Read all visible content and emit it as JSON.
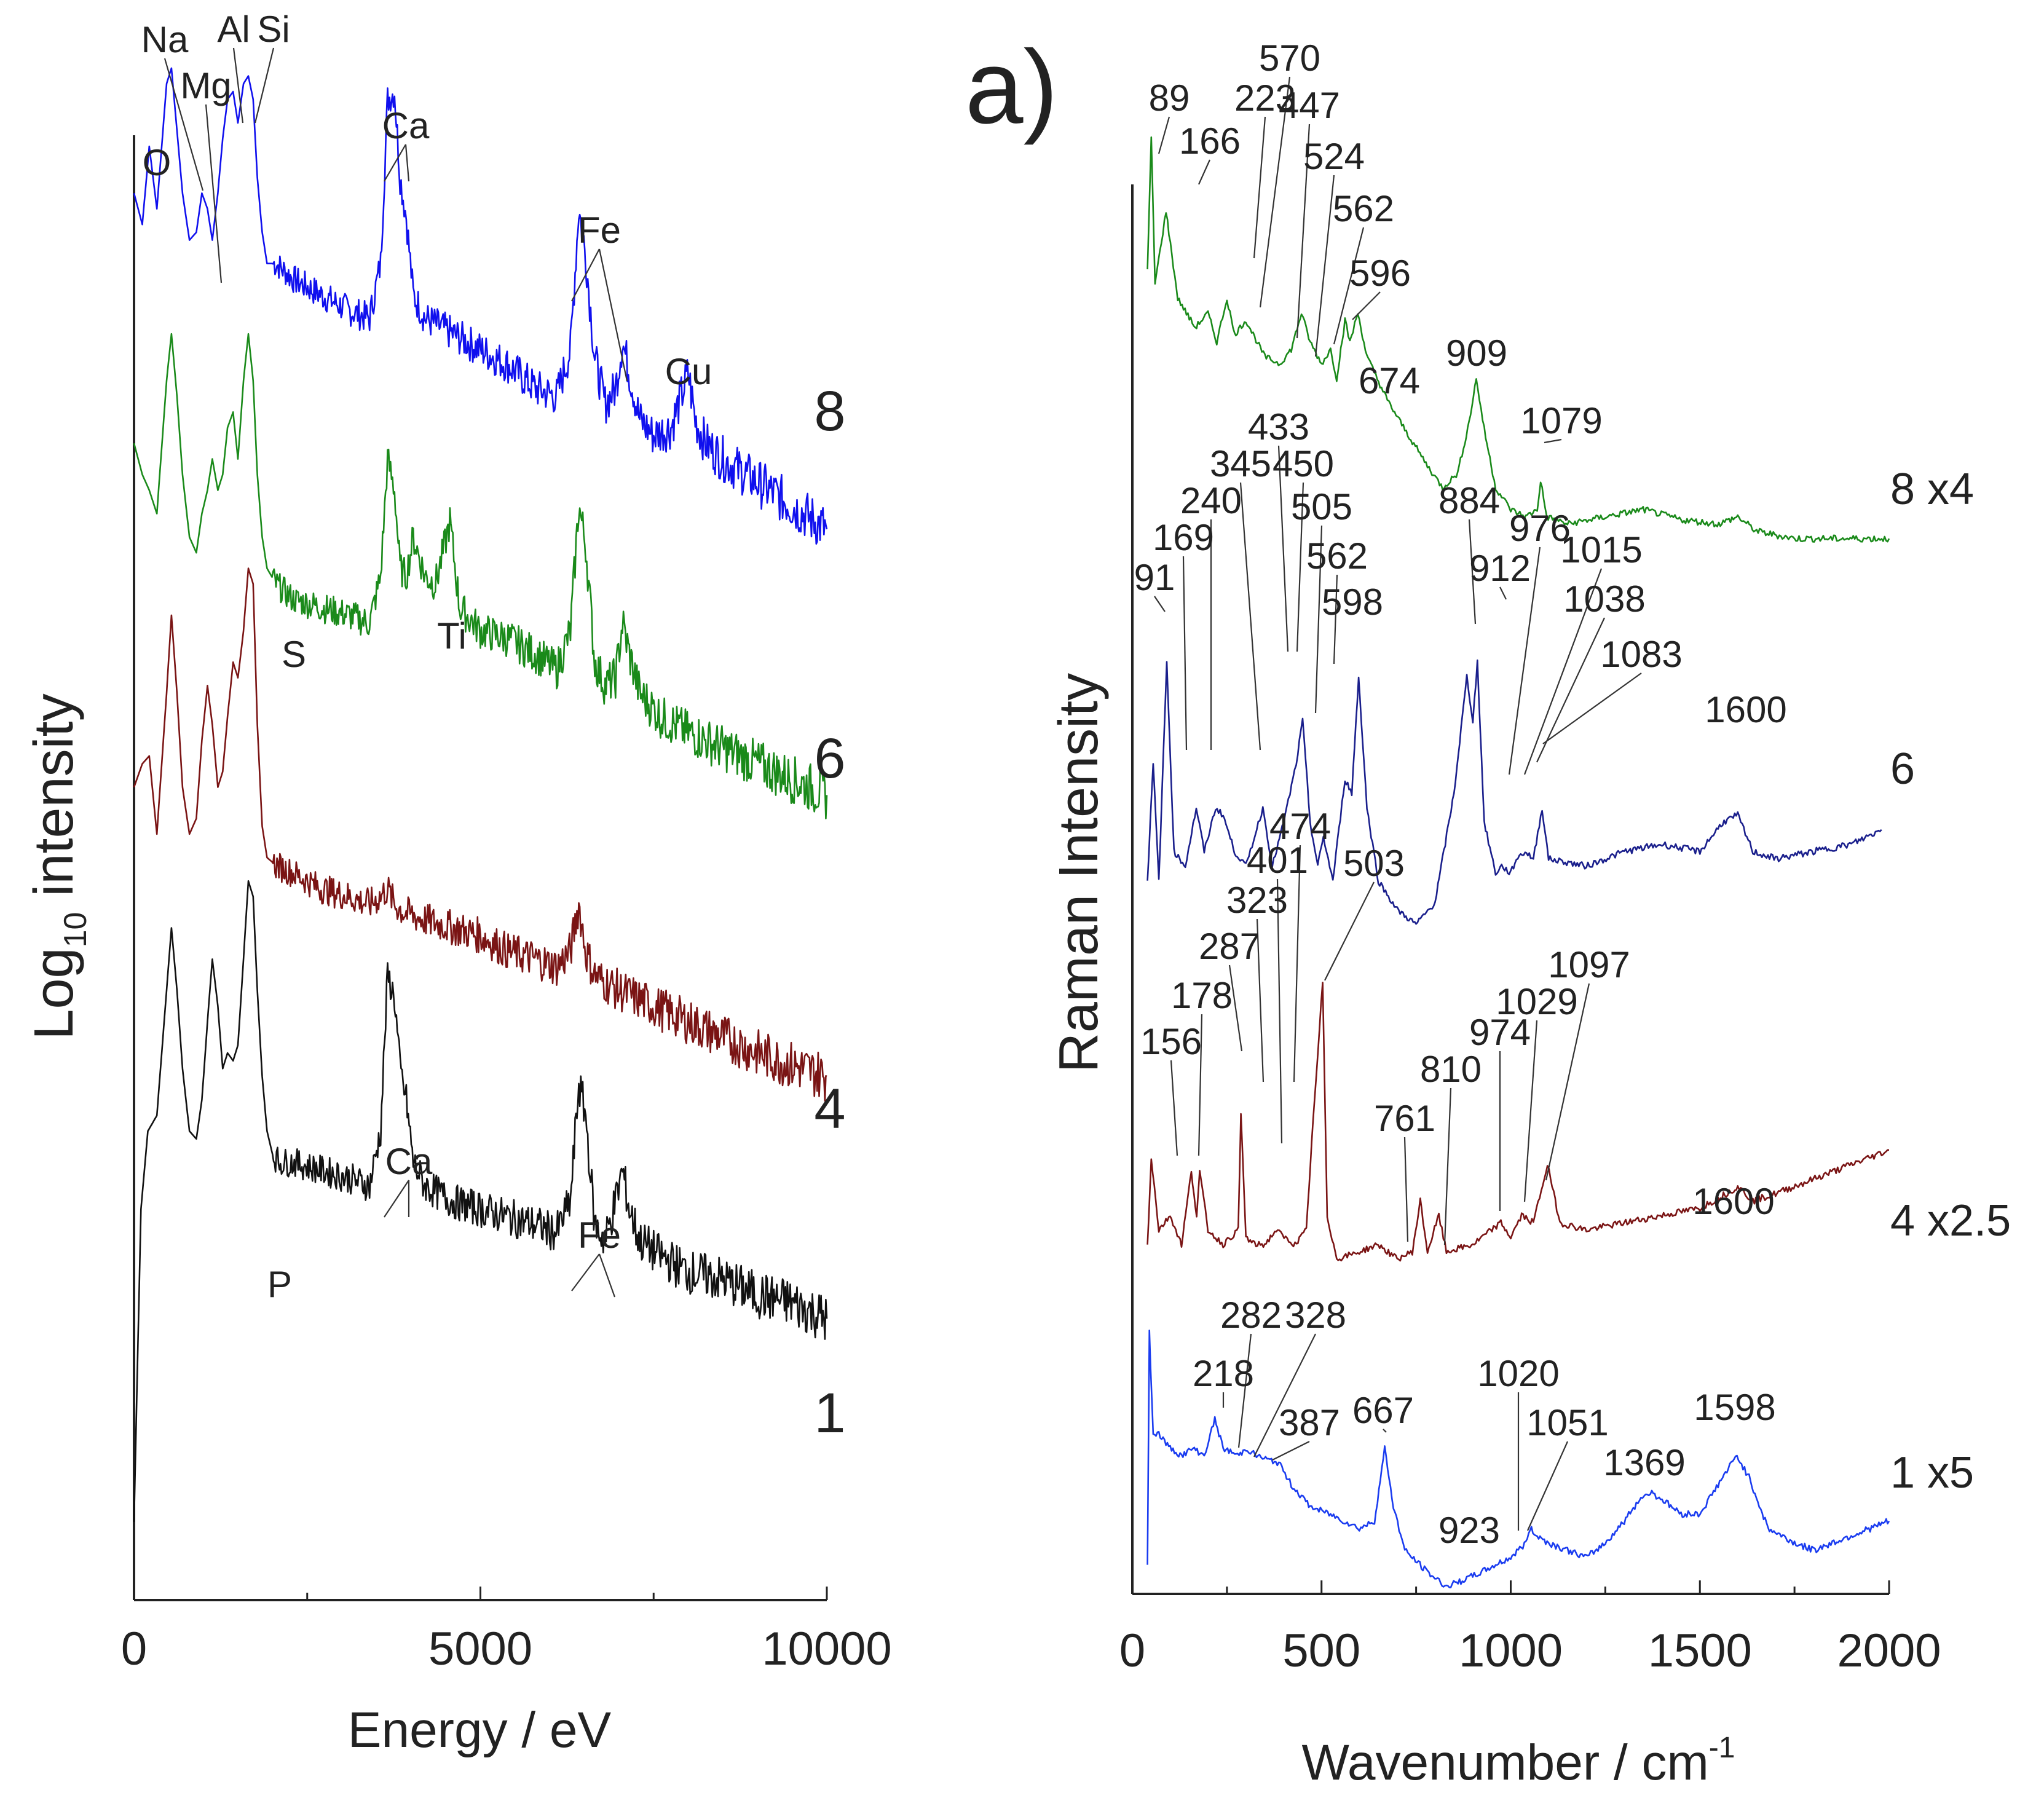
{
  "colors": {
    "blue": "#1010ee",
    "green": "#1a8a1a",
    "darkred": "#7a1414",
    "black": "#111111",
    "navy": "#1a1f8c",
    "raman_blue": "#1a3cf0"
  },
  "chart_data": [
    {
      "type": "line",
      "panel": "left",
      "title": "",
      "xlabel": "Energy  /  eV",
      "ylabel_main": "Log",
      "ylabel_sub": "10",
      "ylabel_rest": " intensity",
      "xlim": [
        0,
        10000
      ],
      "ylim": [
        0,
        10
      ],
      "xticks": [
        0,
        5000,
        10000
      ],
      "xtick_labels": [
        "0",
        "5000",
        "10000"
      ],
      "series": [
        {
          "name": "8",
          "color": "blue",
          "label": "8",
          "x": [
            0,
            120,
            220,
            330,
            470,
            540,
            620,
            700,
            800,
            900,
            980,
            1060,
            1130,
            1210,
            1280,
            1350,
            1430,
            1500,
            1580,
            1650,
            1720,
            1780,
            1850,
            1920,
            2050,
            2300,
            2700,
            3100,
            3400,
            3560,
            3660,
            3760,
            3840,
            3930,
            4030,
            4200,
            4600,
            5000,
            5400,
            5800,
            6100,
            6300,
            6420,
            6520,
            6650,
            6800,
            6950,
            7050,
            7150,
            7300,
            7500,
            7750,
            7900,
            8000,
            8100,
            8250,
            8500,
            9000,
            9500,
            10000
          ],
          "y": [
            9.0,
            8.8,
            9.3,
            8.9,
            9.7,
            9.8,
            9.4,
            9.0,
            8.7,
            8.75,
            9.0,
            8.9,
            8.7,
            9.0,
            9.35,
            9.6,
            9.65,
            9.45,
            9.7,
            9.75,
            9.6,
            9.1,
            8.75,
            8.55,
            8.55,
            8.45,
            8.35,
            8.25,
            8.2,
            8.55,
            9.6,
            9.65,
            9.1,
            8.85,
            8.35,
            8.2,
            8.1,
            8.0,
            7.9,
            7.75,
            7.7,
            8.0,
            8.9,
            8.6,
            7.95,
            7.65,
            7.75,
            8.05,
            7.85,
            7.55,
            7.45,
            7.5,
            7.7,
            7.85,
            7.55,
            7.4,
            7.3,
            7.15,
            7.0,
            6.85
          ]
        },
        {
          "name": "6",
          "color": "green",
          "label": "6",
          "x": [
            0,
            120,
            220,
            330,
            470,
            540,
            620,
            700,
            800,
            900,
            980,
            1060,
            1130,
            1210,
            1280,
            1350,
            1430,
            1500,
            1580,
            1650,
            1720,
            1780,
            1850,
            1920,
            2050,
            2300,
            2700,
            3100,
            3400,
            3560,
            3660,
            3760,
            3840,
            3930,
            4030,
            4200,
            4350,
            4460,
            4560,
            4700,
            5000,
            5400,
            5800,
            6100,
            6300,
            6420,
            6520,
            6650,
            6800,
            6950,
            7050,
            7150,
            7300,
            7600,
            8000,
            8500,
            9000,
            9500,
            10000
          ],
          "y": [
            7.4,
            7.2,
            7.1,
            6.95,
            7.8,
            8.1,
            7.7,
            7.2,
            6.8,
            6.7,
            6.95,
            7.1,
            7.3,
            7.1,
            7.2,
            7.5,
            7.6,
            7.3,
            7.8,
            8.1,
            7.8,
            7.2,
            6.8,
            6.6,
            6.5,
            6.4,
            6.35,
            6.3,
            6.25,
            6.55,
            7.3,
            7.1,
            6.6,
            6.55,
            6.8,
            6.55,
            6.5,
            6.7,
            6.9,
            6.35,
            6.2,
            6.15,
            6.05,
            5.95,
            6.2,
            7.0,
            6.75,
            6.0,
            5.85,
            5.9,
            6.25,
            6.05,
            5.8,
            5.65,
            5.55,
            5.45,
            5.35,
            5.25,
            5.15
          ]
        },
        {
          "name": "4",
          "color": "darkred",
          "label": "4",
          "x": [
            0,
            120,
            220,
            330,
            470,
            540,
            620,
            700,
            800,
            900,
            980,
            1060,
            1130,
            1210,
            1280,
            1350,
            1430,
            1500,
            1580,
            1650,
            1720,
            1780,
            1850,
            1920,
            2050,
            2300,
            2700,
            3100,
            3400,
            3560,
            3660,
            3760,
            3900,
            4200,
            4600,
            5000,
            5400,
            5800,
            6100,
            6300,
            6420,
            6520,
            6650,
            6800,
            7000,
            7500,
            8000,
            8500,
            9000,
            9500,
            10000
          ],
          "y": [
            5.2,
            5.35,
            5.4,
            4.9,
            5.8,
            6.3,
            5.8,
            5.2,
            4.9,
            5.0,
            5.5,
            5.85,
            5.6,
            5.2,
            5.3,
            5.65,
            6.0,
            5.9,
            6.2,
            6.6,
            6.5,
            5.6,
            4.95,
            4.75,
            4.7,
            4.65,
            4.55,
            4.5,
            4.45,
            4.5,
            4.55,
            4.45,
            4.4,
            4.35,
            4.3,
            4.25,
            4.15,
            4.1,
            4.05,
            4.15,
            4.45,
            4.15,
            4.0,
            3.95,
            3.9,
            3.8,
            3.7,
            3.6,
            3.5,
            3.42,
            3.35
          ]
        },
        {
          "name": "1",
          "color": "black",
          "label": "1",
          "x": [
            0,
            100,
            200,
            330,
            470,
            540,
            620,
            700,
            800,
            900,
            980,
            1060,
            1130,
            1210,
            1280,
            1350,
            1430,
            1500,
            1580,
            1650,
            1720,
            1780,
            1850,
            1920,
            2000,
            2100,
            2300,
            2700,
            3100,
            3400,
            3560,
            3660,
            3760,
            3840,
            3930,
            4030,
            4200,
            4600,
            5000,
            5400,
            5800,
            6100,
            6300,
            6420,
            6520,
            6650,
            6800,
            6950,
            7050,
            7150,
            7300,
            7600,
            8000,
            8500,
            9000,
            9500,
            10000
          ],
          "y": [
            0.5,
            2.5,
            3.0,
            3.1,
            3.9,
            4.3,
            3.9,
            3.4,
            3.0,
            2.95,
            3.2,
            3.7,
            4.1,
            3.8,
            3.4,
            3.5,
            3.45,
            3.55,
            4.1,
            4.6,
            4.5,
            3.9,
            3.35,
            3.0,
            2.85,
            2.8,
            2.8,
            2.75,
            2.7,
            2.65,
            3.0,
            4.0,
            3.85,
            3.4,
            3.2,
            2.8,
            2.65,
            2.55,
            2.5,
            2.45,
            2.4,
            2.35,
            2.55,
            3.3,
            3.1,
            2.4,
            2.3,
            2.55,
            2.75,
            2.5,
            2.3,
            2.2,
            2.1,
            2.05,
            1.95,
            1.9,
            1.8
          ]
        }
      ],
      "annotations": [
        {
          "text": "Na",
          "series": "8"
        },
        {
          "text": "Mg",
          "series": "8"
        },
        {
          "text": "Al",
          "series": "8"
        },
        {
          "text": "Si",
          "series": "8"
        },
        {
          "text": "O",
          "series": "8"
        },
        {
          "text": "Ca",
          "series": "8"
        },
        {
          "text": "Fe",
          "series": "8"
        },
        {
          "text": "Cu",
          "series": "8"
        },
        {
          "text": "S",
          "series": "6"
        },
        {
          "text": "Ti",
          "series": "6"
        },
        {
          "text": "Ca",
          "series": "1"
        },
        {
          "text": "P",
          "series": "1"
        },
        {
          "text": "Fe",
          "series": "1"
        }
      ]
    },
    {
      "type": "line",
      "panel": "right",
      "panel_label": "a)",
      "xlabel": "Wavenumber / cm",
      "xlabel_sup": "-1",
      "ylabel": "Raman  Intensity",
      "xlim": [
        0,
        2000
      ],
      "ylim": [
        0,
        10
      ],
      "xticks": [
        0,
        500,
        1000,
        1500,
        2000
      ],
      "xtick_labels": [
        "0",
        "500",
        "1000",
        "1500",
        "2000"
      ],
      "series": [
        {
          "name": "8 x4",
          "color": "green",
          "label": "8 x4",
          "x": [
            40,
            50,
            60,
            89,
            120,
            166,
            200,
            223,
            250,
            270,
            300,
            350,
            390,
            420,
            447,
            470,
            500,
            524,
            540,
            562,
            575,
            596,
            620,
            674,
            720,
            780,
            820,
            860,
            890,
            909,
            930,
            960,
            1000,
            1040,
            1070,
            1079,
            1095,
            1150,
            1250,
            1350,
            1450,
            1550,
            1600,
            1650,
            1750,
            1850,
            2000
          ],
          "y": [
            9.1,
            10.0,
            9.0,
            9.5,
            8.9,
            8.7,
            8.8,
            8.6,
            8.9,
            8.65,
            8.75,
            8.5,
            8.45,
            8.55,
            8.8,
            8.6,
            8.45,
            8.55,
            8.35,
            8.75,
            8.6,
            8.8,
            8.5,
            8.2,
            8.0,
            7.75,
            7.6,
            7.7,
            8.05,
            8.35,
            8.0,
            7.6,
            7.45,
            7.4,
            7.45,
            7.65,
            7.4,
            7.35,
            7.4,
            7.45,
            7.38,
            7.35,
            7.4,
            7.3,
            7.25,
            7.25,
            7.25
          ]
        },
        {
          "name": "6",
          "color": "navy",
          "label": "6",
          "x": [
            40,
            55,
            70,
            91,
            110,
            140,
            169,
            190,
            220,
            240,
            270,
            300,
            345,
            370,
            400,
            433,
            450,
            470,
            490,
            505,
            530,
            562,
            580,
            598,
            620,
            650,
            700,
            750,
            800,
            850,
            884,
            900,
            912,
            930,
            960,
            976,
            1000,
            1015,
            1038,
            1060,
            1083,
            1100,
            1200,
            1300,
            1400,
            1500,
            1560,
            1600,
            1640,
            1700,
            1800,
            1900,
            1980
          ],
          "y": [
            4.9,
            5.7,
            4.9,
            6.4,
            5.1,
            5.0,
            5.4,
            5.1,
            5.4,
            5.35,
            5.1,
            5.0,
            5.4,
            5.0,
            5.3,
            5.7,
            6.0,
            5.3,
            5.0,
            5.2,
            4.9,
            5.6,
            5.5,
            6.3,
            5.4,
            4.9,
            4.7,
            4.6,
            4.75,
            5.5,
            6.3,
            6.0,
            6.4,
            5.3,
            4.95,
            5.0,
            4.95,
            5.05,
            5.1,
            5.05,
            5.4,
            5.05,
            5.0,
            5.1,
            5.15,
            5.1,
            5.3,
            5.35,
            5.1,
            5.05,
            5.1,
            5.15,
            5.25
          ]
        },
        {
          "name": "4 x2.5",
          "color": "darkred",
          "label": "4 x2.5",
          "x": [
            40,
            50,
            70,
            100,
            130,
            156,
            170,
            178,
            200,
            240,
            280,
            287,
            300,
            323,
            350,
            380,
            401,
            430,
            460,
            474,
            490,
            503,
            515,
            540,
            600,
            650,
            700,
            740,
            761,
            780,
            810,
            830,
            900,
            974,
            1000,
            1029,
            1060,
            1097,
            1130,
            1200,
            1300,
            1400,
            1500,
            1570,
            1600,
            1640,
            1700,
            1800,
            1900,
            2000
          ],
          "y": [
            2.4,
            3.0,
            2.5,
            2.6,
            2.4,
            2.9,
            2.6,
            2.9,
            2.5,
            2.4,
            2.5,
            3.3,
            2.45,
            2.4,
            2.4,
            2.5,
            2.45,
            2.4,
            2.5,
            3.1,
            3.7,
            4.2,
            2.6,
            2.3,
            2.35,
            2.4,
            2.3,
            2.35,
            2.7,
            2.35,
            2.6,
            2.35,
            2.4,
            2.55,
            2.45,
            2.6,
            2.55,
            2.95,
            2.55,
            2.5,
            2.55,
            2.6,
            2.65,
            2.75,
            2.8,
            2.7,
            2.75,
            2.85,
            2.95,
            3.05
          ]
        },
        {
          "name": "1 x5",
          "color": "raman_blue",
          "label": "1 x5",
          "x": [
            40,
            45,
            55,
            70,
            100,
            130,
            160,
            190,
            218,
            240,
            282,
            300,
            328,
            360,
            387,
            420,
            470,
            520,
            560,
            600,
            640,
            667,
            690,
            720,
            780,
            830,
            880,
            923,
            960,
            1000,
            1020,
            1040,
            1051,
            1070,
            1100,
            1150,
            1200,
            1250,
            1300,
            1340,
            1369,
            1400,
            1450,
            1500,
            1560,
            1598,
            1630,
            1680,
            1750,
            1800,
            1850,
            1900,
            1950,
            2000
          ],
          "y": [
            0.2,
            1.8,
            1.1,
            1.1,
            1.0,
            0.95,
            1.0,
            0.95,
            1.2,
            1.0,
            0.95,
            1.0,
            0.95,
            0.92,
            0.9,
            0.75,
            0.6,
            0.55,
            0.5,
            0.45,
            0.5,
            1.0,
            0.6,
            0.3,
            0.15,
            0.05,
            0.1,
            0.15,
            0.2,
            0.25,
            0.3,
            0.35,
            0.45,
            0.4,
            0.35,
            0.3,
            0.25,
            0.35,
            0.5,
            0.65,
            0.7,
            0.65,
            0.55,
            0.55,
            0.8,
            0.95,
            0.8,
            0.45,
            0.35,
            0.3,
            0.35,
            0.4,
            0.45,
            0.5
          ]
        }
      ],
      "peak_labels": [
        {
          "series": "8 x4",
          "labels": [
            "89",
            "166",
            "223",
            "570",
            "447",
            "524",
            "562",
            "596",
            "674",
            "909",
            "1079"
          ]
        },
        {
          "series": "6",
          "labels": [
            "91",
            "169",
            "240",
            "345",
            "433",
            "450",
            "505",
            "562",
            "598",
            "884",
            "912",
            "976",
            "1015",
            "1038",
            "1083",
            "1600"
          ]
        },
        {
          "series": "4 x2.5",
          "labels": [
            "156",
            "178",
            "287",
            "323",
            "401",
            "474",
            "503",
            "761",
            "810",
            "974",
            "1029",
            "1097",
            "1600"
          ]
        },
        {
          "series": "1 x5",
          "labels": [
            "218",
            "282",
            "328",
            "387",
            "667",
            "923",
            "1020",
            "1051",
            "1369",
            "1598"
          ]
        }
      ]
    }
  ]
}
